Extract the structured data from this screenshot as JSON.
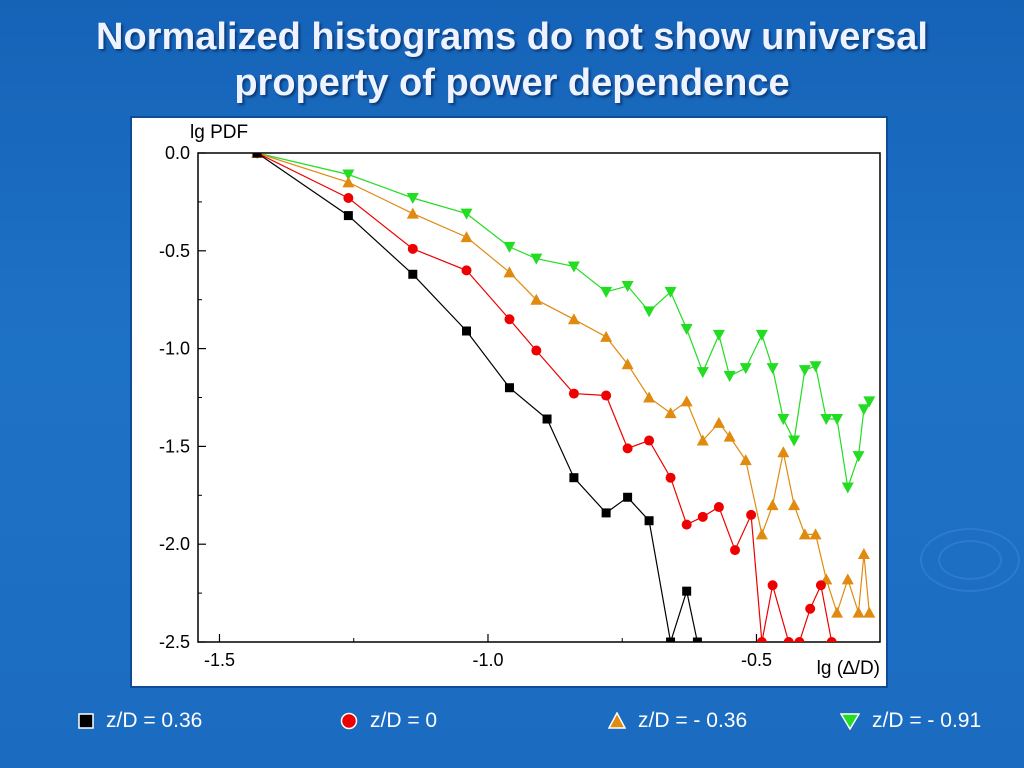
{
  "slide": {
    "title_line1": "Normalized histograms do not show universal",
    "title_line2": "property of power dependence"
  },
  "colors": {
    "series_black": "#000000",
    "series_red": "#ee0000",
    "series_orange": "#e08a10",
    "series_green": "#22dd22"
  },
  "chart_data": {
    "type": "line",
    "ylabel": "lg PDF",
    "xlabel": "lg (∆/D)",
    "xlim": [
      -1.54,
      -0.27
    ],
    "ylim": [
      -2.5,
      0.0
    ],
    "xticks": [
      -1.5,
      -1.0,
      -0.5
    ],
    "xtick_labels": [
      "-1.5",
      "-1.0",
      "-0.5"
    ],
    "yticks": [
      0.0,
      -0.5,
      -1.0,
      -1.5,
      -2.0,
      -2.5
    ],
    "ytick_labels": [
      "0.0",
      "-0.5",
      "-1.0",
      "-1.5",
      "-2.0",
      "-2.5"
    ],
    "grid": false,
    "legend_position": "bottom",
    "series": [
      {
        "name": "z/D = 0.36",
        "marker": "square",
        "color": "#000000",
        "x": [
          -1.43,
          -1.26,
          -1.14,
          -1.04,
          -0.96,
          -0.89,
          -0.84,
          -0.78,
          -0.74,
          -0.7,
          -0.66,
          -0.63,
          -0.61
        ],
        "y": [
          0.0,
          -0.32,
          -0.62,
          -0.91,
          -1.2,
          -1.36,
          -1.66,
          -1.84,
          -1.76,
          -1.88,
          -2.5,
          -2.24,
          -2.5
        ]
      },
      {
        "name": "z/D = 0",
        "marker": "circle",
        "color": "#ee0000",
        "x": [
          -1.43,
          -1.26,
          -1.14,
          -1.04,
          -0.96,
          -0.91,
          -0.84,
          -0.78,
          -0.74,
          -0.7,
          -0.66,
          -0.63,
          -0.6,
          -0.57,
          -0.54,
          -0.51,
          -0.49,
          -0.47,
          -0.44,
          -0.42,
          -0.4,
          -0.38,
          -0.36
        ],
        "y": [
          0.0,
          -0.23,
          -0.49,
          -0.6,
          -0.85,
          -1.01,
          -1.23,
          -1.24,
          -1.51,
          -1.47,
          -1.66,
          -1.9,
          -1.86,
          -1.81,
          -2.03,
          -1.85,
          -2.5,
          -2.21,
          -2.5,
          -2.5,
          -2.33,
          -2.21,
          -2.5
        ]
      },
      {
        "name": "z/D = - 0.36",
        "marker": "triangle-up",
        "color": "#e08a10",
        "x": [
          -1.43,
          -1.26,
          -1.14,
          -1.04,
          -0.96,
          -0.91,
          -0.84,
          -0.78,
          -0.74,
          -0.7,
          -0.66,
          -0.63,
          -0.6,
          -0.57,
          -0.55,
          -0.52,
          -0.49,
          -0.47,
          -0.45,
          -0.43,
          -0.41,
          -0.39,
          -0.37,
          -0.35,
          -0.33,
          -0.31,
          -0.3,
          -0.29
        ],
        "y": [
          0.0,
          -0.15,
          -0.31,
          -0.43,
          -0.61,
          -0.75,
          -0.85,
          -0.94,
          -1.08,
          -1.25,
          -1.33,
          -1.27,
          -1.47,
          -1.38,
          -1.45,
          -1.57,
          -1.95,
          -1.8,
          -1.53,
          -1.8,
          -1.95,
          -1.95,
          -2.18,
          -2.35,
          -2.18,
          -2.35,
          -2.05,
          -2.35
        ]
      },
      {
        "name": "z/D = - 0.91",
        "marker": "triangle-down",
        "color": "#22dd22",
        "x": [
          -1.43,
          -1.26,
          -1.14,
          -1.04,
          -0.96,
          -0.91,
          -0.84,
          -0.78,
          -0.74,
          -0.7,
          -0.66,
          -0.63,
          -0.6,
          -0.57,
          -0.55,
          -0.52,
          -0.49,
          -0.47,
          -0.45,
          -0.43,
          -0.41,
          -0.39,
          -0.37,
          -0.35,
          -0.33,
          -0.31,
          -0.3,
          -0.29
        ],
        "y": [
          0.0,
          -0.11,
          -0.23,
          -0.31,
          -0.48,
          -0.54,
          -0.58,
          -0.71,
          -0.68,
          -0.81,
          -0.71,
          -0.9,
          -1.12,
          -0.93,
          -1.14,
          -1.1,
          -0.93,
          -1.1,
          -1.36,
          -1.47,
          -1.11,
          -1.09,
          -1.36,
          -1.36,
          -1.71,
          -1.55,
          -1.31,
          -1.27
        ]
      }
    ]
  }
}
